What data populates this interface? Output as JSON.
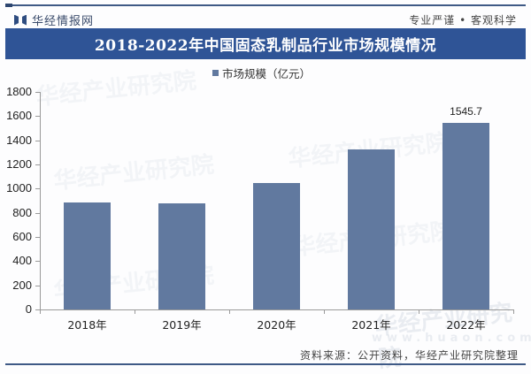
{
  "header": {
    "brand_name": "华经情报网",
    "slogan": "专业严谨 • 客观科学"
  },
  "title": "2018-2022年中国固态乳制品行业市场规模情况",
  "legend": {
    "label": "市场规模（亿元）",
    "color": "#61799f"
  },
  "watermarks": {
    "text": "华经产业研究院",
    "url": "www.huaon.com"
  },
  "source": "资料来源：公开资料，华经产业研究院整理",
  "colors": {
    "bar": "#61799f",
    "title_bg": "#2f5496"
  },
  "chart_data": {
    "type": "bar",
    "title": "2018-2022年中国固态乳制品行业市场规模情况",
    "categories": [
      "2018年",
      "2019年",
      "2020年",
      "2021年",
      "2022年"
    ],
    "series": [
      {
        "name": "市场规模（亿元）",
        "values": [
          882,
          880,
          1046,
          1324,
          1545.7
        ]
      }
    ],
    "data_labels": {
      "2022年": "1545.7"
    },
    "xlabel": "",
    "ylabel": "",
    "ylim": [
      0,
      1800
    ],
    "yticks": [
      "0",
      "200",
      "400",
      "600",
      "800",
      "1000",
      "1200",
      "1400",
      "1600",
      "1800"
    ],
    "grid": false,
    "legend_position": "top"
  }
}
